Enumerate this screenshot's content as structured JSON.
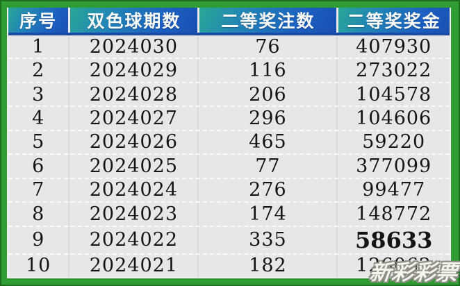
{
  "chart_data": {
    "type": "table",
    "columns": [
      "序号",
      "双色球期数",
      "二等奖注数",
      "二等奖奖金"
    ],
    "rows": [
      [
        "1",
        "2024030",
        "76",
        "407930"
      ],
      [
        "2",
        "2024029",
        "116",
        "273022"
      ],
      [
        "3",
        "2024028",
        "206",
        "104578"
      ],
      [
        "4",
        "2024027",
        "296",
        "104606"
      ],
      [
        "5",
        "2024026",
        "465",
        "59220"
      ],
      [
        "6",
        "2024025",
        "77",
        "377099"
      ],
      [
        "7",
        "2024024",
        "276",
        "99477"
      ],
      [
        "8",
        "2024023",
        "174",
        "148772"
      ],
      [
        "9",
        "2024022",
        "335",
        "58633"
      ],
      [
        "10",
        "2024021",
        "182",
        "126062"
      ]
    ],
    "emphasis": {
      "row": 8,
      "col": 3
    },
    "layout": {
      "grid": "dashed-row-separators",
      "header_style": "teal-to-blue-gradient"
    }
  },
  "watermark": {
    "text": "新彩彩票"
  },
  "colors": {
    "frame_green": "#2f9d32",
    "frame_green_dark": "#1e6f1f",
    "header_teal": "#2aa795",
    "header_blue": "#1b5fc0",
    "header_bottom_band": "#1c4ba6",
    "row_background": "#e6e7e6",
    "data_text": "#141414",
    "header_text": "#ffffff"
  }
}
